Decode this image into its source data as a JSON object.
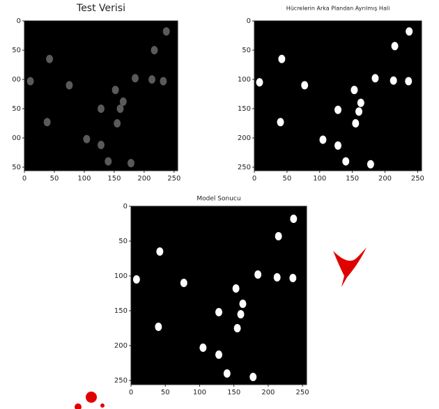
{
  "chart_data": [
    {
      "type": "scatter",
      "title": "Test Verisi",
      "color": "#5a5a5a",
      "x": [
        10,
        42,
        75,
        128,
        152,
        165,
        160,
        155,
        104,
        128,
        140,
        178,
        185,
        213,
        217,
        237,
        232,
        38
      ],
      "y": [
        103,
        65,
        110,
        150,
        118,
        138,
        150,
        175,
        202,
        212,
        240,
        243,
        98,
        100,
        50,
        18,
        103,
        173
      ],
      "xlim": [
        0,
        256
      ],
      "ylim": [
        256,
        0
      ],
      "xticks": [
        0,
        50,
        100,
        150,
        200,
        250
      ],
      "yticks": [
        0,
        50,
        {
          "value": 100,
          "label": "00"
        },
        {
          "value": 150,
          "label": "50"
        },
        {
          "value": 200,
          "label": "00"
        },
        {
          "value": 250,
          "label": "50"
        }
      ]
    },
    {
      "type": "scatter",
      "title": "Hücrelerin Arka Plandan Ayrılmış Hali",
      "color": "#ffffff",
      "x": [
        8,
        42,
        77,
        128,
        153,
        163,
        160,
        155,
        105,
        128,
        140,
        178,
        185,
        213,
        215,
        237,
        236,
        40
      ],
      "y": [
        105,
        65,
        110,
        152,
        118,
        140,
        155,
        175,
        203,
        213,
        240,
        245,
        98,
        102,
        43,
        18,
        103,
        173
      ],
      "xlim": [
        0,
        256
      ],
      "ylim": [
        256,
        0
      ],
      "xticks": [
        0,
        50,
        100,
        150,
        200,
        250
      ],
      "yticks": [
        0,
        50,
        100,
        150,
        200,
        250
      ]
    },
    {
      "type": "scatter",
      "title": "Model Sonucu",
      "color": "#ffffff",
      "x": [
        8,
        42,
        77,
        128,
        153,
        163,
        160,
        155,
        105,
        128,
        140,
        178,
        185,
        213,
        215,
        237,
        236,
        40
      ],
      "y": [
        105,
        65,
        110,
        152,
        118,
        140,
        155,
        175,
        203,
        213,
        240,
        245,
        98,
        102,
        43,
        18,
        103,
        173
      ],
      "xlim": [
        0,
        256
      ],
      "ylim": [
        256,
        0
      ],
      "xticks": [
        0,
        50,
        100,
        150,
        200,
        250
      ],
      "yticks": [
        0,
        50,
        100,
        150,
        200,
        250
      ]
    }
  ]
}
